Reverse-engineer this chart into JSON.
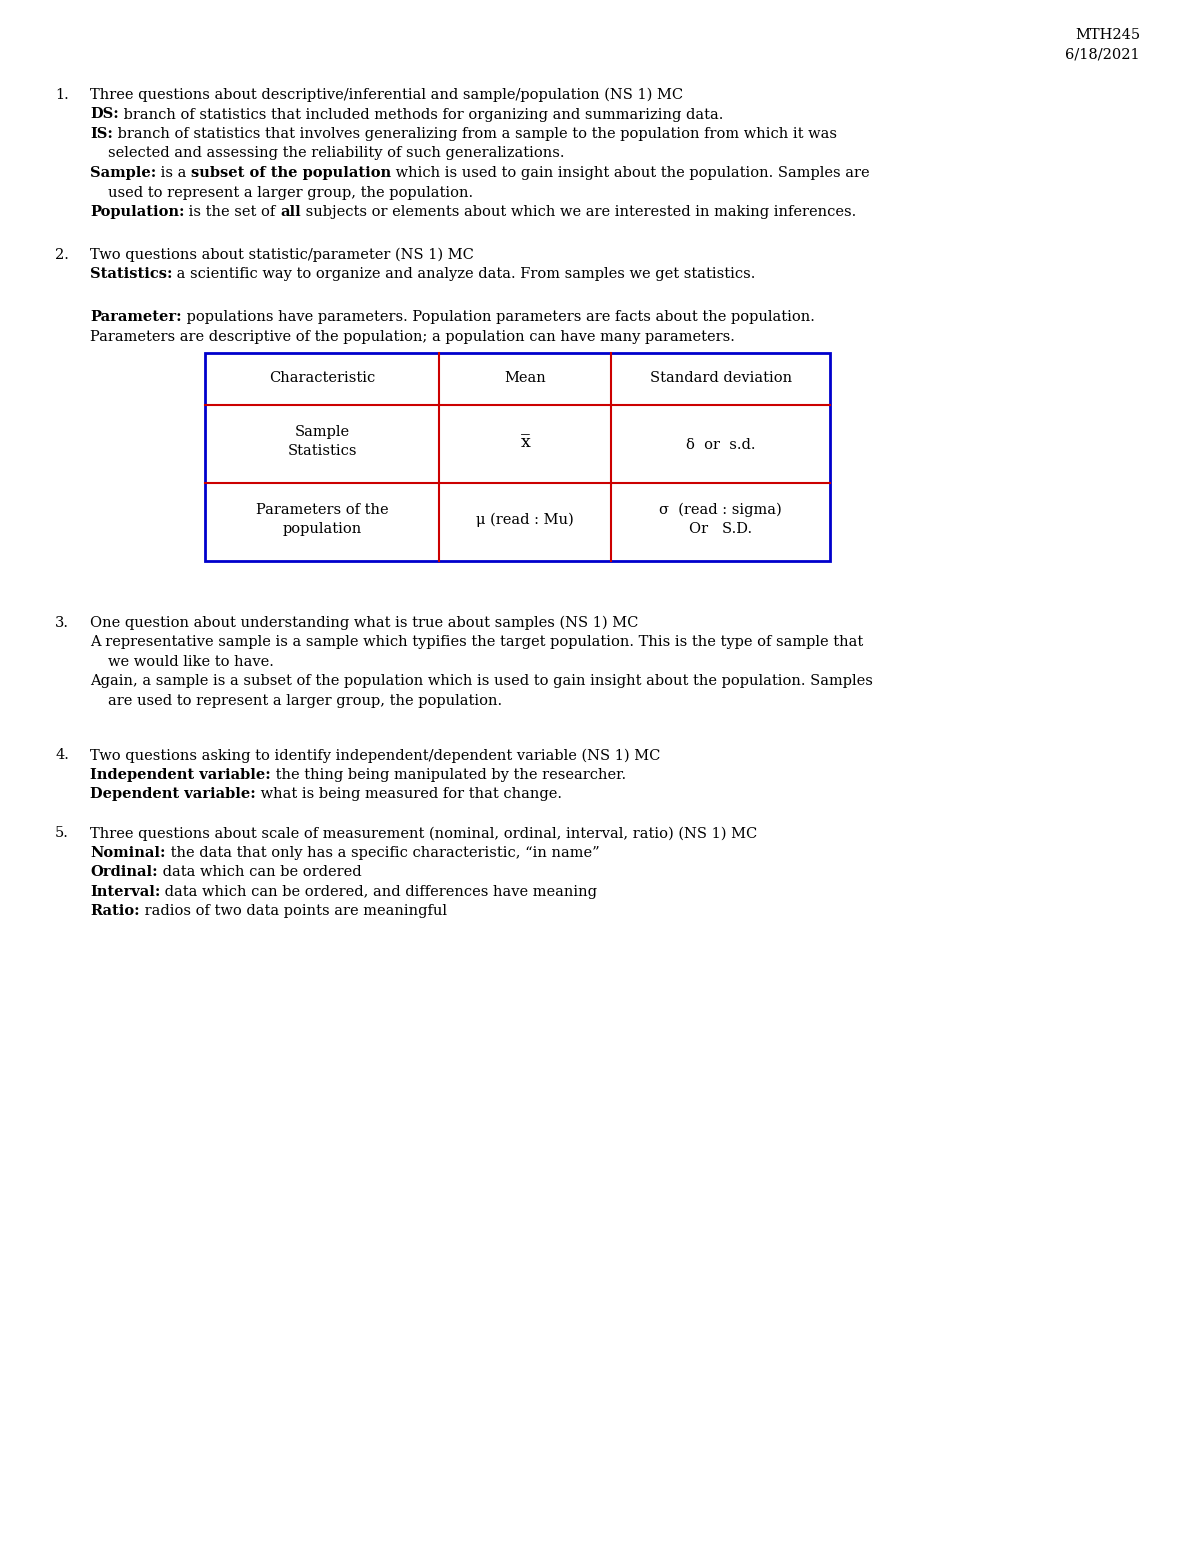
{
  "bg_color": "#ffffff",
  "font_size": 10.5,
  "header_text": "MTH245\n6/18/2021",
  "outer_color": "#0000cc",
  "inner_color": "#cc0000",
  "table_headers": [
    "Characteristic",
    "Mean",
    "Standard deviation"
  ],
  "table_row1_col0": "Sample\nStatistics",
  "table_row1_col1": "x̅",
  "table_row1_col2": "δ  or  s.d.",
  "table_row2_col0": "Parameters of the\npopulation",
  "table_row2_col1": "μ (read : Mu)",
  "table_row2_col2": "σ  (read : sigma)\nOr   S.D."
}
